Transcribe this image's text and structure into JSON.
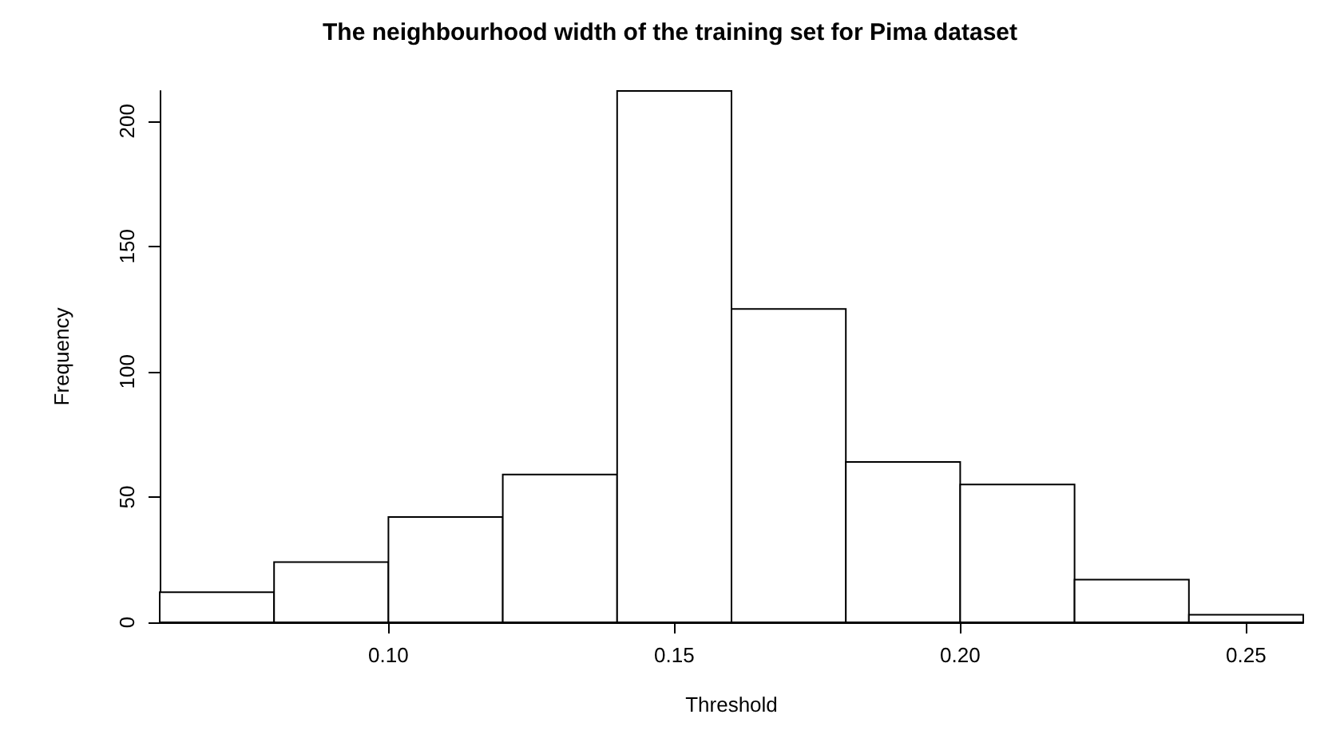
{
  "chart_data": {
    "type": "histogram",
    "title": "The neighbourhood width of the training set for Pima dataset",
    "xlabel": "Threshold",
    "ylabel": "Frequency",
    "bins": [
      0.06,
      0.08,
      0.1,
      0.12,
      0.14,
      0.16,
      0.18,
      0.2,
      0.22,
      0.24,
      0.26
    ],
    "values": [
      12,
      24,
      42,
      59,
      212,
      125,
      64,
      55,
      17,
      3
    ],
    "color": "#ffffff",
    "xlim": [
      0.06,
      0.26
    ],
    "xticks": [
      {
        "value": 0.1,
        "label": "0.10"
      },
      {
        "value": 0.15,
        "label": "0.15"
      },
      {
        "value": 0.2,
        "label": "0.20"
      },
      {
        "value": 0.25,
        "label": "0.25"
      }
    ],
    "ylim": [
      0,
      212
    ],
    "yticks": [
      0,
      50,
      100,
      150,
      200
    ],
    "grid": false
  }
}
